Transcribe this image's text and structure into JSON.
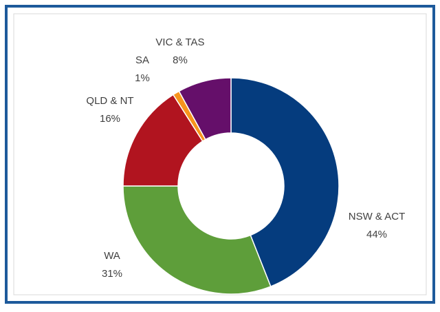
{
  "chart_data": {
    "type": "donut",
    "categories": [
      "NSW & ACT",
      "WA",
      "QLD & NT",
      "SA",
      "VIC & TAS"
    ],
    "values": [
      44,
      31,
      16,
      1,
      8
    ],
    "value_labels": [
      "44%",
      "31%",
      "16%",
      "1%",
      "8%"
    ],
    "colors": [
      "#053c7e",
      "#5e9e3a",
      "#b1141f",
      "#f7941d",
      "#650f6a"
    ]
  }
}
